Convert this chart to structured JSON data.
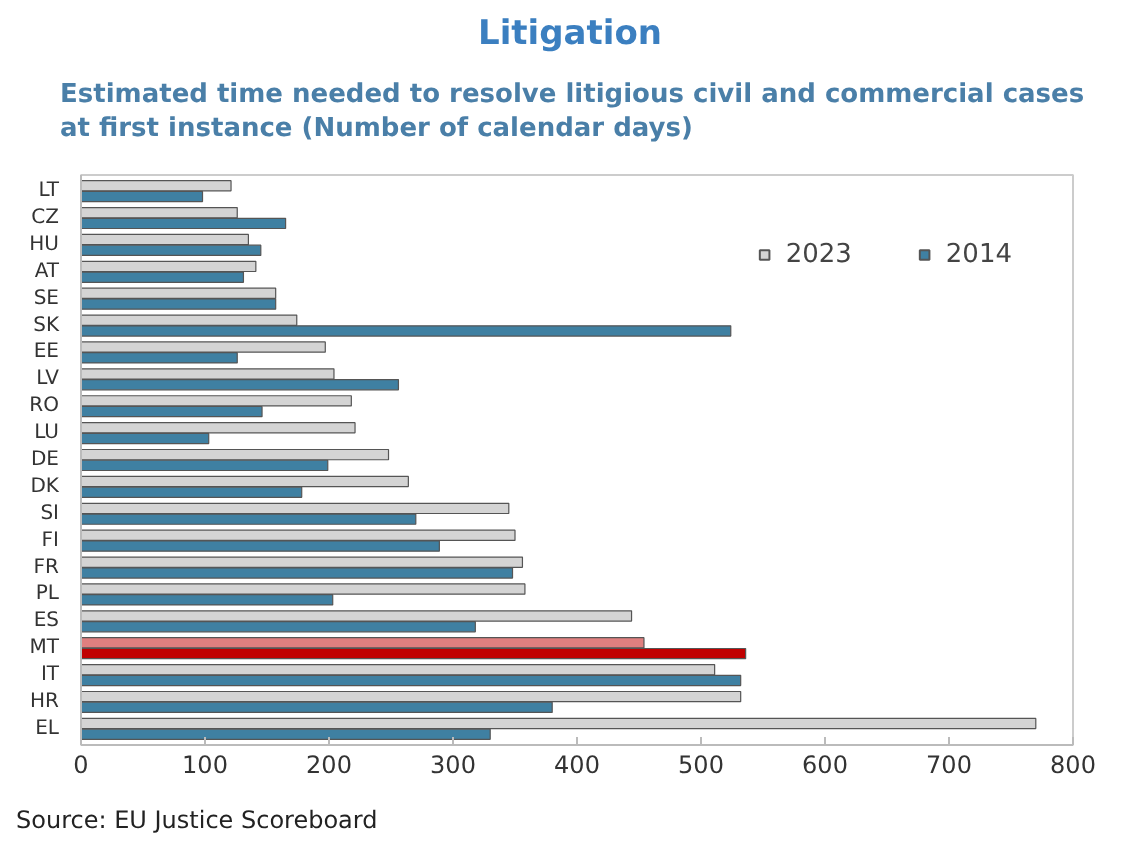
{
  "chart_data": {
    "type": "bar",
    "orientation": "horizontal",
    "title": "Litigation",
    "subtitle": "Estimated time needed to resolve litigious civil and commercial cases at first instance (Number of calendar days)",
    "categories": [
      "LT",
      "CZ",
      "HU",
      "AT",
      "SE",
      "SK",
      "EE",
      "LV",
      "RO",
      "LU",
      "DE",
      "DK",
      "SI",
      "FI",
      "FR",
      "PL",
      "ES",
      "MT",
      "IT",
      "HR",
      "EL"
    ],
    "series": [
      {
        "name": "2023",
        "color": "#d4d4d4",
        "colors": [
          "#d4d4d4",
          "#d4d4d4",
          "#d4d4d4",
          "#d4d4d4",
          "#d4d4d4",
          "#d4d4d4",
          "#d4d4d4",
          "#d4d4d4",
          "#d4d4d4",
          "#d4d4d4",
          "#d4d4d4",
          "#d4d4d4",
          "#d4d4d4",
          "#d4d4d4",
          "#d4d4d4",
          "#d4d4d4",
          "#d4d4d4",
          "#e07f7f",
          "#d4d4d4",
          "#d4d4d4",
          "#d4d4d4"
        ],
        "values": [
          121,
          126,
          135,
          141,
          157,
          174,
          197,
          204,
          218,
          221,
          248,
          264,
          345,
          350,
          356,
          358,
          444,
          454,
          511,
          532,
          770
        ]
      },
      {
        "name": "2014",
        "color": "#3f80a2",
        "colors": [
          "#3f80a2",
          "#3f80a2",
          "#3f80a2",
          "#3f80a2",
          "#3f80a2",
          "#3f80a2",
          "#3f80a2",
          "#3f80a2",
          "#3f80a2",
          "#3f80a2",
          "#3f80a2",
          "#3f80a2",
          "#3f80a2",
          "#3f80a2",
          "#3f80a2",
          "#3f80a2",
          "#3f80a2",
          "#c00000",
          "#3f80a2",
          "#3f80a2",
          "#3f80a2"
        ],
        "values": [
          98,
          165,
          145,
          131,
          157,
          524,
          126,
          256,
          146,
          103,
          199,
          178,
          270,
          289,
          348,
          203,
          318,
          536,
          532,
          380,
          330
        ]
      }
    ],
    "xlim": [
      0,
      800
    ],
    "xticks": [
      0,
      100,
      200,
      300,
      400,
      500,
      600,
      700,
      800
    ],
    "legend": "top right",
    "grid": false,
    "annotations": [
      "Source: EU Justice Scoreboard"
    ]
  }
}
